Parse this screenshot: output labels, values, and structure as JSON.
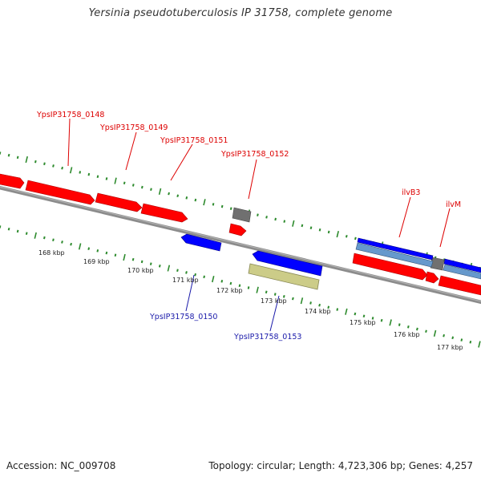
{
  "title": "Yersinia pseudotuberculosis IP 31758, complete genome",
  "footer": {
    "accession": "Accession: NC_009708",
    "summary": "Topology: circular; Length: 4,723,306 bp; Genes: 4,257"
  },
  "colors": {
    "forward_gene": "#ff0000",
    "reverse_gene": "#0000ff",
    "rna_gene": "#707070",
    "cds_feature": "#6699cc",
    "other_feature": "#cccc88",
    "backbone": "#8c8c8c",
    "tick": "#2e8b2e",
    "forward_label": "#dd0000",
    "reverse_label": "#1a1aaa"
  },
  "gene_labels": {
    "g0148": "YpsIP31758_0148",
    "g0149": "YpsIP31758_0149",
    "g0151": "YpsIP31758_0151",
    "g0152": "YpsIP31758_0152",
    "ilvB3": "ilvB3",
    "ilvM": "ilvM",
    "g0150": "YpsIP31758_0150",
    "g0153": "YpsIP31758_0153"
  },
  "tick_labels": [
    "168 kbp",
    "169 kbp",
    "170 kbp",
    "171 kbp",
    "172 kbp",
    "173 kbp",
    "174 kbp",
    "175 kbp",
    "176 kbp",
    "177 kbp"
  ]
}
